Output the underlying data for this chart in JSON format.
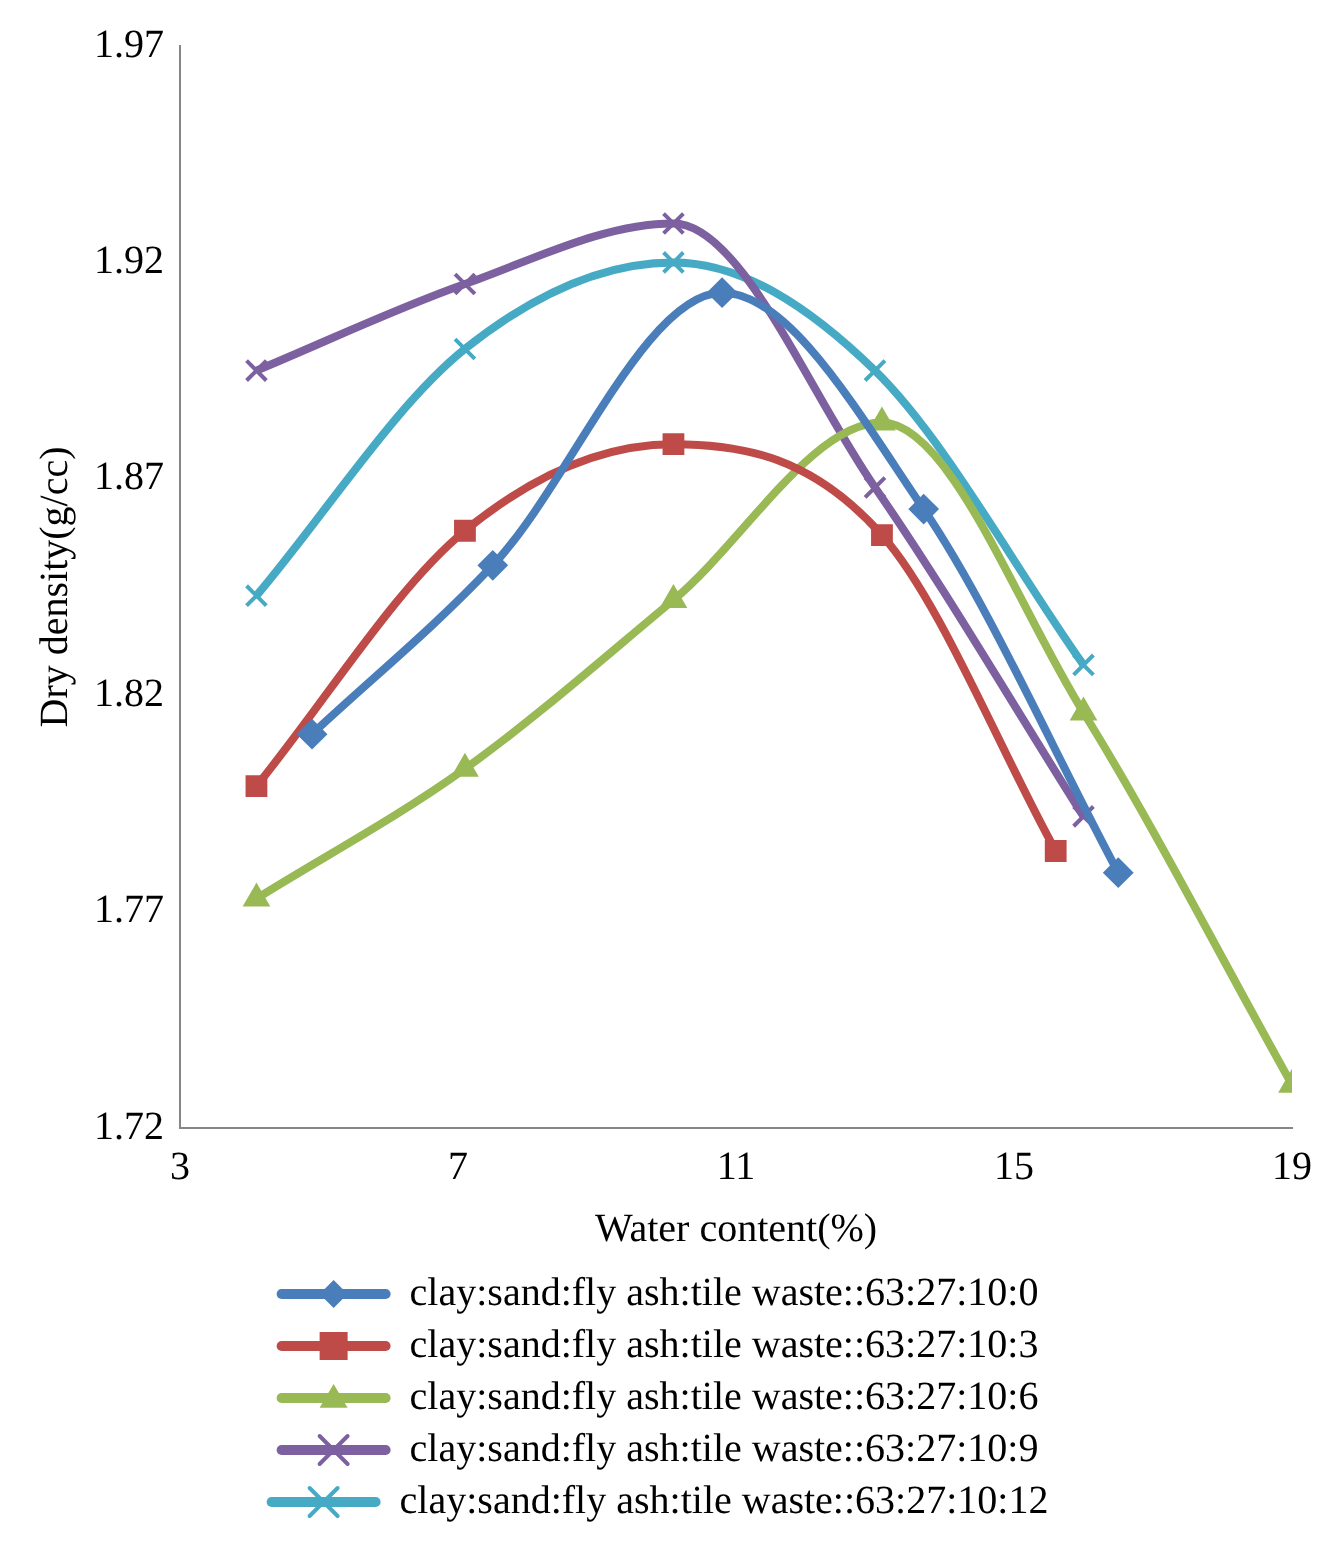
{
  "chart_data": {
    "type": "line",
    "xlabel": "Water content(%)",
    "ylabel": "Dry density(g/cc)",
    "xlim": [
      3,
      19
    ],
    "xticks": [
      3,
      7,
      11,
      15,
      19
    ],
    "ylim": [
      1.72,
      1.97
    ],
    "yticks": [
      1.72,
      1.77,
      1.82,
      1.87,
      1.92,
      1.97
    ],
    "grid": false,
    "legend": "bottom",
    "line_style": "solid",
    "series": [
      {
        "name": "clay:sand:fly ash:tile waste::63:27:10:0",
        "color": "#4a7ebb",
        "marker": "diamond",
        "x": [
          4.9,
          7.5,
          10.8,
          13.7,
          16.5
        ],
        "values": [
          1.811,
          1.85,
          1.913,
          1.863,
          1.779
        ]
      },
      {
        "name": "clay:sand:fly ash:tile waste::63:27:10:3",
        "color": "#be4b48",
        "marker": "square",
        "x": [
          4.1,
          7.1,
          10.1,
          13.1,
          15.6
        ],
        "values": [
          1.799,
          1.858,
          1.878,
          1.857,
          1.784
        ]
      },
      {
        "name": "clay:sand:fly ash:tile waste::63:27:10:6",
        "color": "#98b954",
        "marker": "triangle",
        "x": [
          4.1,
          7.1,
          10.1,
          13.1,
          16.0,
          19.0
        ],
        "values": [
          1.773,
          1.803,
          1.842,
          1.883,
          1.816,
          1.73
        ]
      },
      {
        "name": "clay:sand:fly ash:tile waste::63:27:10:9",
        "color": "#7d60a0",
        "marker": "cross",
        "x": [
          4.1,
          7.1,
          10.1,
          13.0,
          16.0
        ],
        "values": [
          1.895,
          1.915,
          1.929,
          1.868,
          1.792
        ]
      },
      {
        "name": "clay:sand:fly ash:tile waste::63:27:10:12",
        "color": "#46aac5",
        "marker": "cross",
        "x": [
          4.1,
          7.1,
          10.1,
          13.0,
          16.0
        ],
        "values": [
          1.843,
          1.9,
          1.92,
          1.895,
          1.827
        ]
      }
    ]
  }
}
